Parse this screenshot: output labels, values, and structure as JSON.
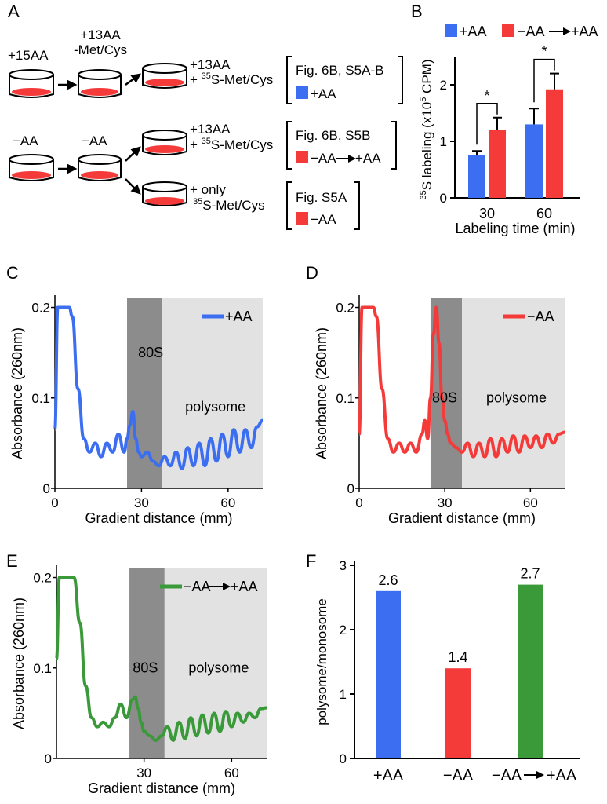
{
  "colors": {
    "blue": "#3b6ef0",
    "red": "#f53a3a",
    "green": "#3a9a3a",
    "dark_band": "#8c8c8c",
    "light_band": "#e2e2e2"
  },
  "panel_letters": {
    "a": "A",
    "b": "B",
    "c": "C",
    "d": "D",
    "e": "E",
    "f": "F"
  },
  "panel_a": {
    "row1": {
      "dish1_label": "+15AA",
      "dish2_label_1": "+13AA",
      "dish2_label_2": "-Met/Cys",
      "dish3_label_1": "+13AA",
      "dish3_label_2_prefix": "+ ",
      "dish3_label_2_sup": "35",
      "dish3_label_2_rest": "S-Met/Cys",
      "box_ref": "Fig. 6B, S5A-B",
      "box_legend": "+AA"
    },
    "row2": {
      "dish1_label": "−AA",
      "dish2_label": "−AA",
      "upper_label_1": "+13AA",
      "upper_label_2_prefix": "+ ",
      "upper_label_2_sup": "35",
      "upper_label_2_rest": "S-Met/Cys",
      "upper_box_ref": "Fig. 6B, S5B",
      "upper_box_legend_from": "−AA",
      "upper_box_legend_to": "+AA",
      "lower_label_1": "+ only",
      "lower_label_2_sup": "35",
      "lower_label_2_rest": "S-Met/Cys",
      "lower_box_ref": "Fig. S5A",
      "lower_box_legend": "−AA"
    }
  },
  "chart_data": [
    {
      "panel": "B",
      "type": "bar",
      "categories": [
        "30",
        "60"
      ],
      "series": [
        {
          "name": "+AA",
          "color": "#3b6ef0",
          "values": [
            0.75,
            1.3
          ],
          "errors": [
            0.08,
            0.28
          ]
        },
        {
          "name": "−AA → +AA",
          "color": "#f53a3a",
          "values": [
            1.2,
            1.92
          ],
          "errors": [
            0.22,
            0.28
          ]
        }
      ],
      "legend": [
        "+AA",
        "−AA",
        "+AA"
      ],
      "ylabel_sup": "35",
      "ylabel_mid": "S labeling (x10",
      "ylabel_sup2": "5",
      "ylabel_end": " CPM)",
      "xlabel": "Labeling time (min)",
      "yticks": [
        "0",
        "1",
        "2"
      ],
      "ylim": [
        0,
        2.5
      ],
      "significance": [
        "*",
        "*"
      ]
    },
    {
      "panel": "C",
      "type": "line",
      "series_name": "+AA",
      "color": "#3b6ef0",
      "x": [
        0,
        1,
        2,
        3,
        4,
        5,
        6,
        8,
        10,
        12,
        14,
        16,
        18,
        20,
        22,
        24,
        25,
        26,
        27,
        28,
        29,
        30,
        32,
        34,
        36,
        38,
        40,
        42,
        44,
        46,
        48,
        50,
        52,
        54,
        56,
        58,
        60,
        62,
        64,
        66,
        68,
        70,
        72
      ],
      "y": [
        0.065,
        0.2,
        0.2,
        0.2,
        0.2,
        0.2,
        0.19,
        0.11,
        0.055,
        0.04,
        0.05,
        0.035,
        0.05,
        0.04,
        0.06,
        0.04,
        0.055,
        0.07,
        0.085,
        0.055,
        0.04,
        0.035,
        0.04,
        0.03,
        0.025,
        0.035,
        0.025,
        0.04,
        0.022,
        0.045,
        0.025,
        0.05,
        0.025,
        0.055,
        0.03,
        0.06,
        0.035,
        0.065,
        0.04,
        0.065,
        0.045,
        0.068,
        0.075
      ],
      "xticks": [
        "0",
        "30",
        "60"
      ],
      "yticks": [
        "0",
        "0.1",
        "0.2"
      ],
      "xlim": [
        0,
        72
      ],
      "ylim": [
        0,
        0.21
      ],
      "xlabel": "Gradient distance (mm)",
      "ylabel": "Absorbance (260nm)",
      "bands": {
        "dark": [
          25,
          37
        ],
        "light": [
          37,
          72
        ]
      },
      "annotations": [
        "80S",
        "polysome"
      ]
    },
    {
      "panel": "D",
      "type": "line",
      "series_name": "−AA",
      "color": "#f53a3a",
      "x": [
        0,
        1,
        2,
        3,
        4,
        5,
        6,
        8,
        10,
        12,
        14,
        16,
        18,
        20,
        22,
        23,
        24,
        25,
        26,
        27,
        28,
        29,
        30,
        31,
        32,
        34,
        36,
        38,
        40,
        42,
        44,
        46,
        48,
        50,
        52,
        54,
        56,
        58,
        60,
        62,
        64,
        66,
        68,
        70,
        72
      ],
      "y": [
        0.06,
        0.2,
        0.2,
        0.2,
        0.2,
        0.2,
        0.19,
        0.11,
        0.055,
        0.04,
        0.05,
        0.04,
        0.05,
        0.04,
        0.06,
        0.075,
        0.055,
        0.1,
        0.17,
        0.2,
        0.16,
        0.1,
        0.075,
        0.06,
        0.05,
        0.045,
        0.04,
        0.05,
        0.035,
        0.05,
        0.035,
        0.055,
        0.035,
        0.055,
        0.04,
        0.058,
        0.04,
        0.058,
        0.045,
        0.058,
        0.045,
        0.06,
        0.05,
        0.06,
        0.062
      ],
      "xticks": [
        "0",
        "30",
        "60"
      ],
      "yticks": [
        "0",
        "0.1",
        "0.2"
      ],
      "xlim": [
        0,
        72
      ],
      "ylim": [
        0,
        0.21
      ],
      "xlabel": "Gradient distance (mm)",
      "ylabel": "Absorbance (260nm)",
      "bands": {
        "dark": [
          25,
          36
        ],
        "light": [
          36,
          72
        ]
      },
      "annotations": [
        "80S",
        "polysome"
      ]
    },
    {
      "panel": "E",
      "type": "line",
      "series_name_from": "−AA",
      "series_name_to": "+AA",
      "color": "#3a9a3a",
      "x": [
        0,
        1,
        2,
        3,
        4,
        5,
        6,
        8,
        10,
        12,
        14,
        16,
        18,
        20,
        22,
        24,
        26,
        27,
        28,
        29,
        30,
        32,
        34,
        36,
        38,
        40,
        42,
        44,
        46,
        48,
        50,
        52,
        54,
        56,
        58,
        60,
        62,
        64,
        66,
        68,
        70,
        72
      ],
      "y": [
        0.11,
        0.2,
        0.2,
        0.2,
        0.2,
        0.2,
        0.2,
        0.15,
        0.08,
        0.045,
        0.035,
        0.04,
        0.035,
        0.045,
        0.06,
        0.045,
        0.065,
        0.068,
        0.055,
        0.04,
        0.03,
        0.025,
        0.02,
        0.025,
        0.035,
        0.02,
        0.04,
        0.022,
        0.045,
        0.025,
        0.048,
        0.028,
        0.05,
        0.03,
        0.052,
        0.035,
        0.05,
        0.04,
        0.05,
        0.045,
        0.055,
        0.056
      ],
      "xticks": [
        "30",
        "60"
      ],
      "yticks": [
        "0",
        "0.1",
        "0.2"
      ],
      "xlim": [
        0,
        72
      ],
      "ylim": [
        0,
        0.21
      ],
      "xlabel": "Gradient distance (mm)",
      "ylabel": "Absorbance (260nm)",
      "bands": {
        "dark": [
          25,
          37
        ],
        "light": [
          37,
          72
        ]
      },
      "annotations": [
        "80S",
        "polysome"
      ]
    },
    {
      "panel": "F",
      "type": "bar",
      "categories": [
        "+AA",
        "−AA",
        "−AA → +AA"
      ],
      "values": [
        2.6,
        1.4,
        2.7
      ],
      "value_labels": [
        "2.6",
        "1.4",
        "2.7"
      ],
      "colors": [
        "#3b6ef0",
        "#f53a3a",
        "#3a9a3a"
      ],
      "ylabel": "polysome/monosome",
      "yticks": [
        "0",
        "1",
        "2",
        "3"
      ],
      "ylim": [
        0,
        3
      ],
      "xlabels": [
        "+AA",
        "−AA",
        "−AA",
        "+AA"
      ]
    }
  ]
}
